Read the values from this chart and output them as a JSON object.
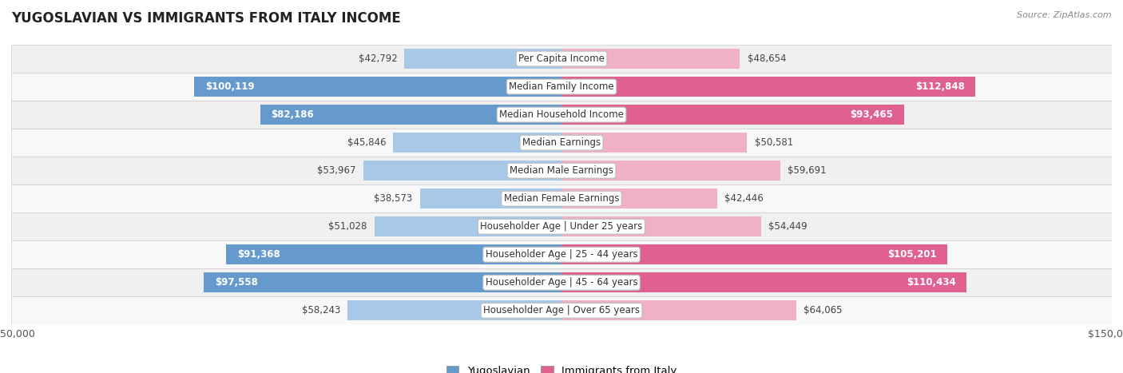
{
  "title": "YUGOSLAVIAN VS IMMIGRANTS FROM ITALY INCOME",
  "source": "Source: ZipAtlas.com",
  "categories": [
    "Per Capita Income",
    "Median Family Income",
    "Median Household Income",
    "Median Earnings",
    "Median Male Earnings",
    "Median Female Earnings",
    "Householder Age | Under 25 years",
    "Householder Age | 25 - 44 years",
    "Householder Age | 45 - 64 years",
    "Householder Age | Over 65 years"
  ],
  "yugoslavian": [
    42792,
    100119,
    82186,
    45846,
    53967,
    38573,
    51028,
    91368,
    97558,
    58243
  ],
  "italy": [
    48654,
    112848,
    93465,
    50581,
    59691,
    42446,
    54449,
    105201,
    110434,
    64065
  ],
  "yugoslavian_labels": [
    "$42,792",
    "$100,119",
    "$82,186",
    "$45,846",
    "$53,967",
    "$38,573",
    "$51,028",
    "$91,368",
    "$97,558",
    "$58,243"
  ],
  "italy_labels": [
    "$48,654",
    "$112,848",
    "$93,465",
    "$50,581",
    "$59,691",
    "$42,446",
    "$54,449",
    "$105,201",
    "$110,434",
    "$64,065"
  ],
  "color_yugoslavian_light": "#a8c8e8",
  "color_yugoslavian_dark": "#6699cc",
  "color_italy_light": "#f0b0c8",
  "color_italy_dark": "#e06090",
  "max_val": 150000,
  "label_fontsize": 8.5,
  "title_fontsize": 12,
  "legend_fontsize": 9.5,
  "inside_threshold": 65000,
  "row_colors": [
    "#f0f0f0",
    "#f8f8f8",
    "#f0f0f0",
    "#f8f8f8",
    "#f0f0f0",
    "#f8f8f8",
    "#f0f0f0",
    "#f8f8f8",
    "#f0f0f0",
    "#f8f8f8"
  ]
}
